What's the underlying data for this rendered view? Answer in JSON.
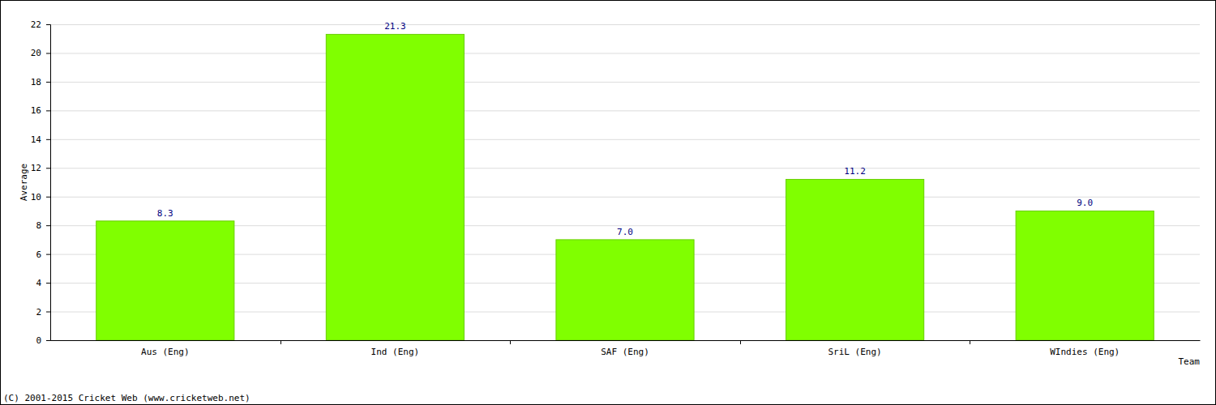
{
  "chart_data": {
    "type": "bar",
    "x_label": "Team",
    "y_label": "Average",
    "annotations": [
      "(C) 2001-2015 Cricket Web (www.cricketweb.net)"
    ],
    "categories": [
      "Aus (Eng)",
      "Ind (Eng)",
      "SAF (Eng)",
      "SriL (Eng)",
      "WIndies (Eng)"
    ],
    "values": [
      8.3,
      21.3,
      7.0,
      11.2,
      9.0
    ],
    "value_labels": [
      "8.3",
      "21.3",
      "7.0",
      "11.2",
      "9.0"
    ],
    "data_labels": true,
    "color": "#80ff00",
    "ylim": [
      0,
      22
    ],
    "yticks": [
      0,
      2,
      4,
      6,
      8,
      10,
      12,
      14,
      16,
      18,
      20,
      22
    ],
    "grid": true
  }
}
